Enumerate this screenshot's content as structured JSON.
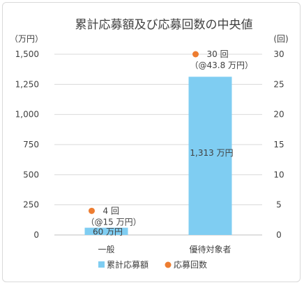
{
  "chart_data": {
    "type": "bar",
    "title": "累計応募額及び応募回数の中央値",
    "categories": [
      "一般",
      "優待対象者"
    ],
    "series": [
      {
        "name": "累計応募額",
        "kind": "bar",
        "axis": "left",
        "values": [
          60,
          1313
        ],
        "data_labels": [
          "60 万円",
          "1,313 万円"
        ],
        "color": "#7fcdf2"
      },
      {
        "name": "応募回数",
        "kind": "scatter",
        "axis": "right",
        "values": [
          4,
          30
        ],
        "data_labels": [
          "4 回",
          "30 回"
        ],
        "sub_labels": [
          "（@15 万円）",
          "（@43.8 万円）"
        ],
        "color": "#ed7d31"
      }
    ],
    "y_left": {
      "unit": "（万円）",
      "ylim": [
        0,
        1500
      ],
      "ticks": [
        0,
        250,
        500,
        750,
        1000,
        1250,
        1500
      ],
      "tick_labels": [
        "0",
        "250",
        "500",
        "750",
        "1,000",
        "1,250",
        "1,500"
      ]
    },
    "y_right": {
      "unit": "(回)",
      "ylim": [
        0,
        30
      ],
      "ticks": [
        0,
        5,
        10,
        15,
        20,
        25,
        30
      ],
      "tick_labels": [
        "0",
        "5",
        "10",
        "15",
        "20",
        "25",
        "30"
      ]
    },
    "grid": true,
    "legend_position": "bottom"
  }
}
